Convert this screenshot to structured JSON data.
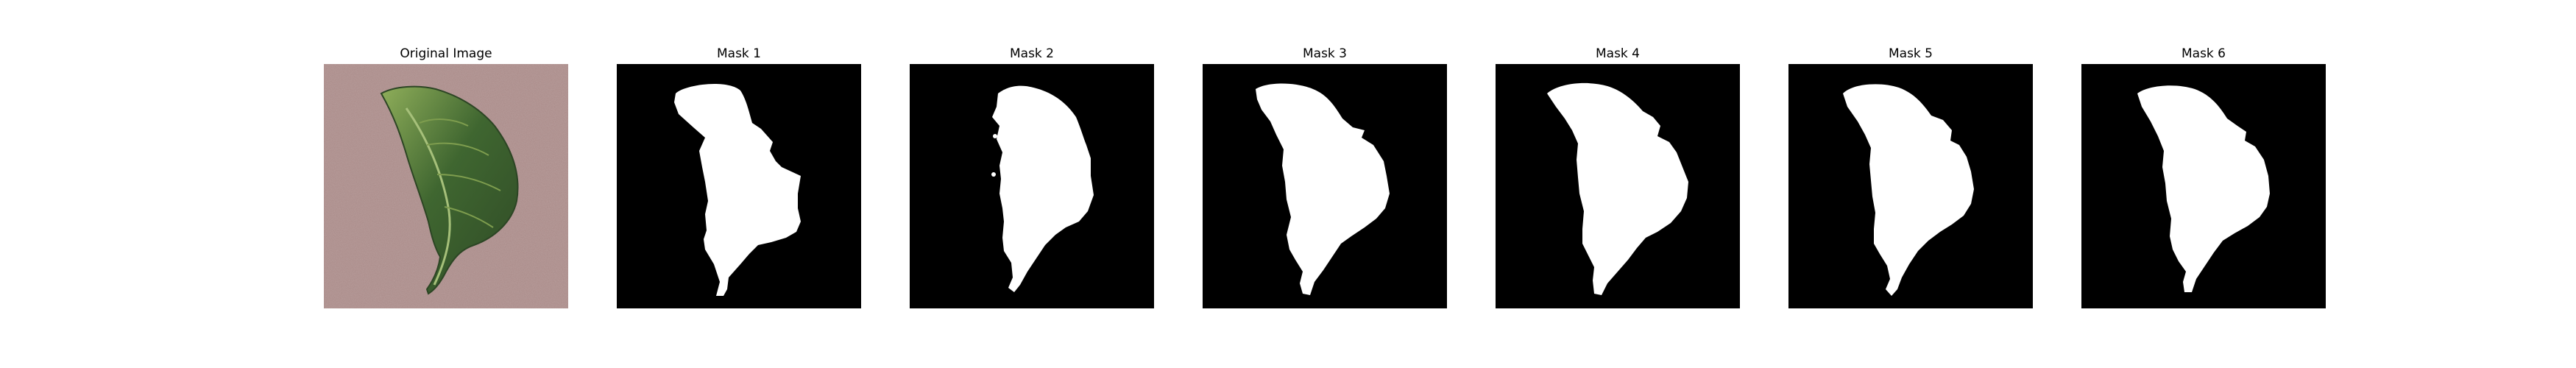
{
  "panels": [
    {
      "title": "Original Image",
      "kind": "photo"
    },
    {
      "title": "Mask 1",
      "kind": "mask"
    },
    {
      "title": "Mask 2",
      "kind": "mask"
    },
    {
      "title": "Mask 3",
      "kind": "mask"
    },
    {
      "title": "Mask 4",
      "kind": "mask"
    },
    {
      "title": "Mask 5",
      "kind": "mask"
    },
    {
      "title": "Mask 6",
      "kind": "mask"
    }
  ],
  "colors": {
    "background": "#ffffff",
    "mask_background": "#000000",
    "mask_foreground": "#ffffff",
    "carpet": "#a98a88",
    "leaf_dark": "#2f4a26",
    "leaf_light": "#8fae5a"
  }
}
